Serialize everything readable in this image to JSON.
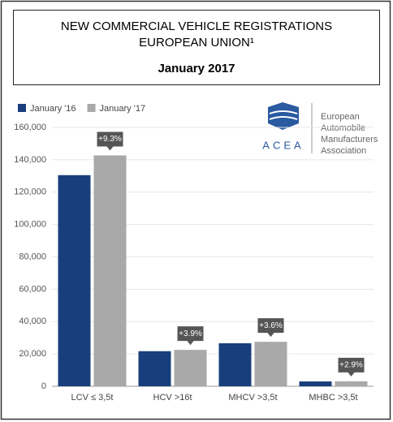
{
  "title_lines": [
    "NEW COMMERCIAL VEHICLE REGISTRATIONS",
    "EUROPEAN UNION¹"
  ],
  "subtitle": "January 2017",
  "logo": {
    "acronym": "ACEA",
    "name_lines": [
      "European",
      "Automobile",
      "Manufacturers",
      "Association"
    ]
  },
  "chart_data": {
    "type": "bar",
    "categories": [
      "LCV ≤ 3,5t",
      "HCV >16t",
      "MHCV >3,5t",
      "MHBC >3,5t"
    ],
    "series": [
      {
        "name": "January '16",
        "color": "#183f7c",
        "values": [
          130500,
          21700,
          26600,
          3000
        ]
      },
      {
        "name": "January '17",
        "color": "#a9a9a9",
        "values": [
          142700,
          22500,
          27500,
          3100
        ]
      }
    ],
    "changes": [
      "+9.3%",
      "+3.9%",
      "+3.6%",
      "+2.9%"
    ],
    "ylim": [
      0,
      160000
    ],
    "yticks": [
      0,
      {
        "value": 20000,
        "label": "20,000"
      },
      {
        "value": 40000,
        "label": "40,000"
      },
      {
        "value": 60000,
        "label": "60,000"
      },
      {
        "value": 80000,
        "label": "80,000"
      },
      {
        "value": 100000,
        "label": "100,000"
      },
      {
        "value": 120000,
        "label": "120,000"
      },
      {
        "value": 140000,
        "label": "140,000"
      },
      {
        "value": 160000,
        "label": "160,000"
      }
    ],
    "grid": true,
    "legend": "top-left"
  }
}
